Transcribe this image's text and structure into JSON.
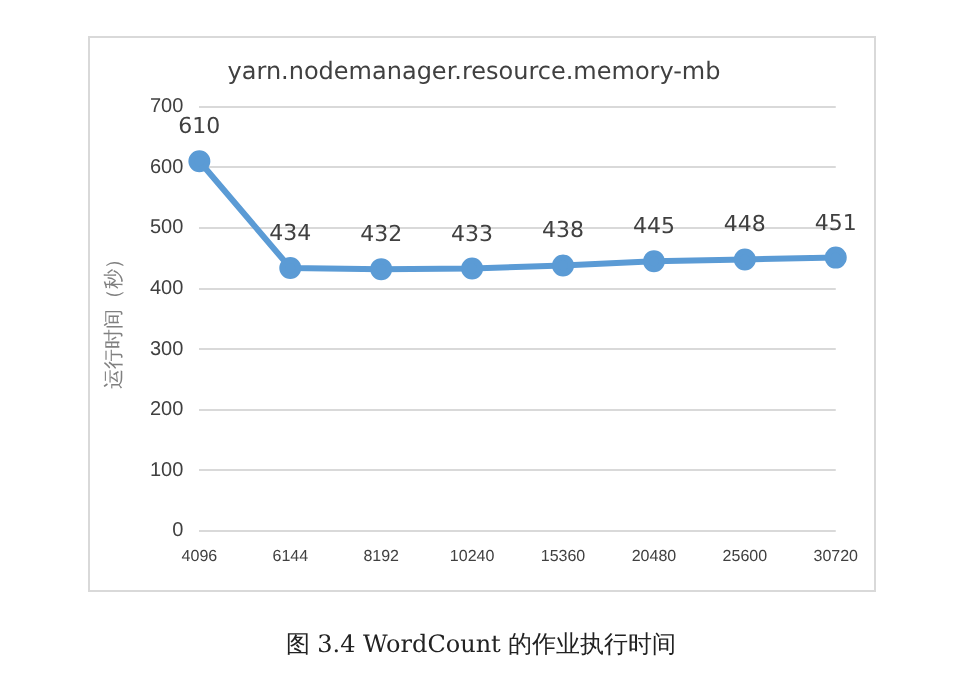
{
  "chart_data": {
    "type": "line",
    "title": "yarn.nodemanager.resource.memory-mb",
    "ylabel": "运行时间（秒）",
    "categories": [
      "4096",
      "6144",
      "8192",
      "10240",
      "15360",
      "20480",
      "25600",
      "30720"
    ],
    "series": [
      {
        "color": "#5b9bd5",
        "values": [
          610,
          434,
          432,
          433,
          438,
          445,
          448,
          451
        ]
      }
    ],
    "ylim": [
      0,
      700
    ],
    "yticks": [
      0,
      100,
      200,
      300,
      400,
      500,
      600,
      700
    ],
    "grid": "y",
    "legend": false,
    "marker": "circle",
    "line_style": "solid",
    "data_labels": true,
    "annotations": [
      "图 3.4 WordCount 的作业执行时间"
    ]
  }
}
